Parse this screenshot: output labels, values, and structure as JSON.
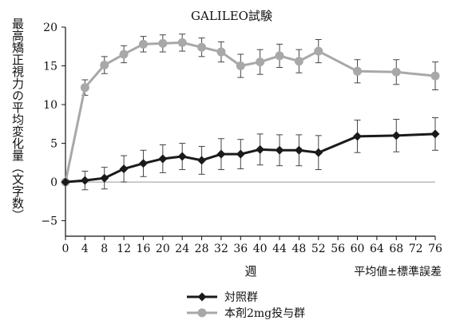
{
  "chart_data": {
    "type": "line",
    "title": "GALILEO試験",
    "xlabel": "週",
    "ylabel": "最高矯正視力の平均変化量（文字数）",
    "note": "平均値±標準誤差",
    "x": [
      0,
      4,
      8,
      12,
      16,
      20,
      24,
      28,
      32,
      36,
      40,
      44,
      48,
      52,
      56,
      60,
      64,
      68,
      72,
      76
    ],
    "xlim": [
      0,
      76
    ],
    "ylim": [
      -7,
      20
    ],
    "yticks": [
      -5,
      0,
      5,
      10,
      15,
      20
    ],
    "y_tick_labels": [
      "−5",
      "0",
      "5",
      "10",
      "15",
      "20"
    ],
    "zero_line": true,
    "grid": false,
    "legend_position": "bottom-left",
    "series": [
      {
        "name": "対照群",
        "color": "#1a1a1a",
        "marker": "diamond",
        "points": [
          {
            "x": 0,
            "y": 0,
            "err": 0
          },
          {
            "x": 4,
            "y": 0.2,
            "err": 1.2
          },
          {
            "x": 8,
            "y": 0.5,
            "err": 1.4
          },
          {
            "x": 12,
            "y": 1.7,
            "err": 1.7
          },
          {
            "x": 16,
            "y": 2.4,
            "err": 1.7
          },
          {
            "x": 20,
            "y": 3.0,
            "err": 1.8
          },
          {
            "x": 24,
            "y": 3.3,
            "err": 1.7
          },
          {
            "x": 28,
            "y": 2.8,
            "err": 1.8
          },
          {
            "x": 32,
            "y": 3.6,
            "err": 2.0
          },
          {
            "x": 36,
            "y": 3.6,
            "err": 1.9
          },
          {
            "x": 40,
            "y": 4.2,
            "err": 2.0
          },
          {
            "x": 44,
            "y": 4.1,
            "err": 2.0
          },
          {
            "x": 48,
            "y": 4.1,
            "err": 2.0
          },
          {
            "x": 52,
            "y": 3.8,
            "err": 2.2
          },
          {
            "x": 60,
            "y": 5.9,
            "err": 2.1
          },
          {
            "x": 68,
            "y": 6.0,
            "err": 2.1
          },
          {
            "x": 76,
            "y": 6.2,
            "err": 2.1
          }
        ]
      },
      {
        "name": "本剤2mg投与群",
        "color": "#a8a8a8",
        "marker": "circle",
        "points": [
          {
            "x": 0,
            "y": 0,
            "err": 0
          },
          {
            "x": 4,
            "y": 12.2,
            "err": 1.0
          },
          {
            "x": 8,
            "y": 15.1,
            "err": 1.1
          },
          {
            "x": 12,
            "y": 16.5,
            "err": 1.1
          },
          {
            "x": 16,
            "y": 17.8,
            "err": 1.0
          },
          {
            "x": 20,
            "y": 17.9,
            "err": 1.1
          },
          {
            "x": 24,
            "y": 18.0,
            "err": 1.1
          },
          {
            "x": 28,
            "y": 17.4,
            "err": 1.2
          },
          {
            "x": 32,
            "y": 16.8,
            "err": 1.3
          },
          {
            "x": 36,
            "y": 15.0,
            "err": 1.5
          },
          {
            "x": 40,
            "y": 15.5,
            "err": 1.6
          },
          {
            "x": 44,
            "y": 16.3,
            "err": 1.5
          },
          {
            "x": 48,
            "y": 15.6,
            "err": 1.5
          },
          {
            "x": 52,
            "y": 16.9,
            "err": 1.5
          },
          {
            "x": 60,
            "y": 14.3,
            "err": 1.5
          },
          {
            "x": 68,
            "y": 14.2,
            "err": 1.6
          },
          {
            "x": 76,
            "y": 13.7,
            "err": 1.8
          }
        ]
      }
    ]
  }
}
